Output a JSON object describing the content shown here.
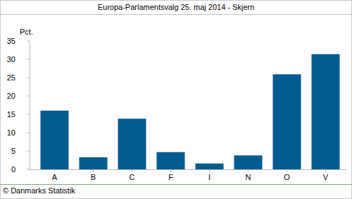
{
  "chart_data": {
    "type": "bar",
    "title": "Europa-Parlamentsvalg 25. maj 2014 - Skjern",
    "y_label": "Pct.",
    "categories": [
      "A",
      "B",
      "C",
      "F",
      "I",
      "N",
      "O",
      "V"
    ],
    "values": [
      16,
      3.3,
      13.8,
      4.7,
      1.6,
      3.8,
      25.9,
      31.4
    ],
    "color": "#005b8f",
    "ylim": [
      0,
      35
    ],
    "yticks": [
      0,
      5,
      10,
      15,
      20,
      25,
      30,
      35
    ],
    "grid": false,
    "annotations": [
      "© Danmarks Statistik"
    ]
  }
}
